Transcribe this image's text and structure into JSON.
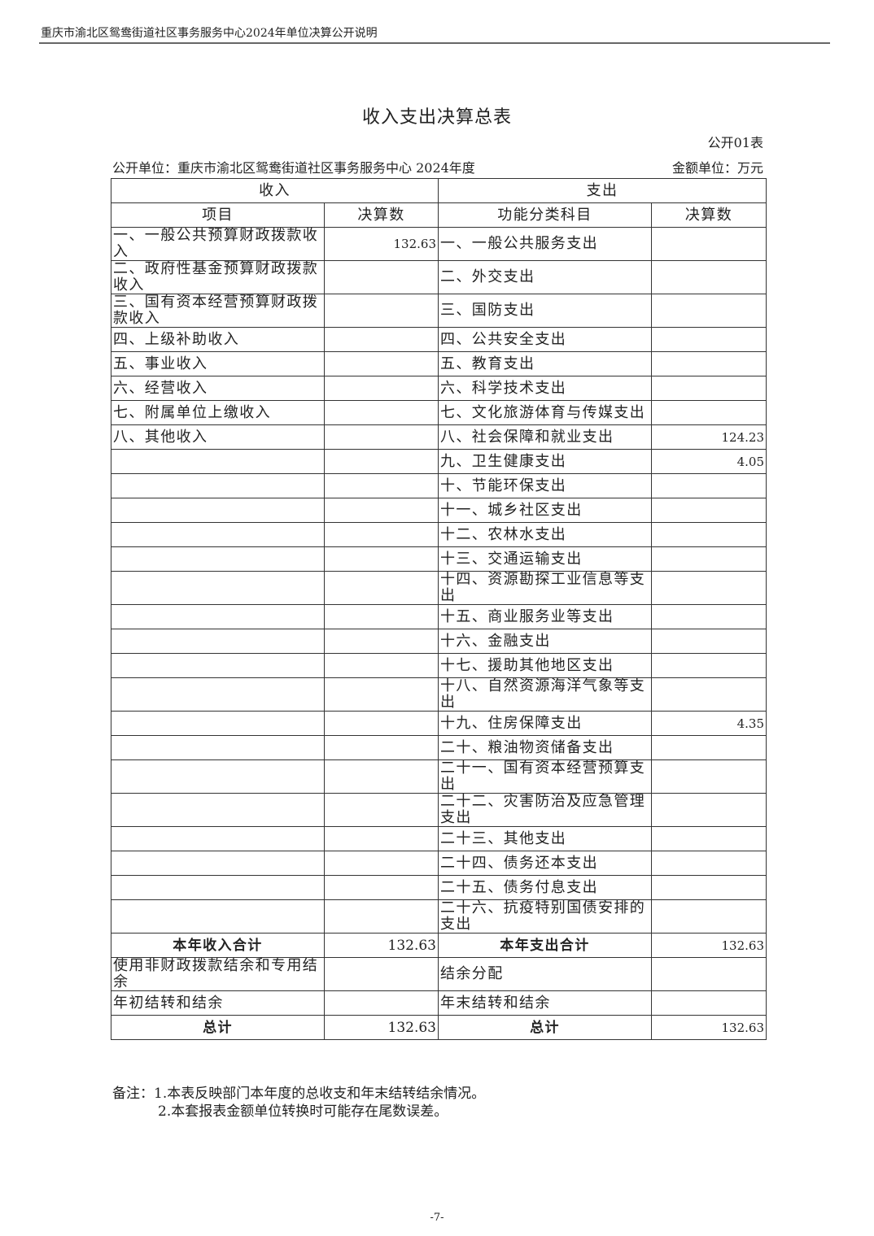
{
  "running_header": "重庆市渝北区鸳鸯街道社区事务服务中心2024年单位决算公开说明",
  "title": "收入支出决算总表",
  "form_no": "公开01表",
  "unit_line": "公开单位：重庆市渝北区鸳鸯街道社区事务服务中心 2024年度",
  "amount_unit": "金额单位：万元",
  "headers": {
    "income": "收入",
    "expense": "支出",
    "item": "项目",
    "amount": "决算数",
    "category": "功能分类科目",
    "amount2": "决算数"
  },
  "rows": [
    {
      "income_item": "一、一般公共预算财政拨款收入",
      "income_amount": "132.63",
      "expense_item": "一、一般公共服务支出",
      "expense_amount": ""
    },
    {
      "income_item": "二、政府性基金预算财政拨款收入",
      "income_amount": "",
      "expense_item": "二、外交支出",
      "expense_amount": ""
    },
    {
      "income_item": "三、国有资本经营预算财政拨款收入",
      "income_amount": "",
      "expense_item": "三、国防支出",
      "expense_amount": ""
    },
    {
      "income_item": "四、上级补助收入",
      "income_amount": "",
      "expense_item": "四、公共安全支出",
      "expense_amount": ""
    },
    {
      "income_item": "五、事业收入",
      "income_amount": "",
      "expense_item": "五、教育支出",
      "expense_amount": ""
    },
    {
      "income_item": "六、经营收入",
      "income_amount": "",
      "expense_item": "六、科学技术支出",
      "expense_amount": ""
    },
    {
      "income_item": "七、附属单位上缴收入",
      "income_amount": "",
      "expense_item": "七、文化旅游体育与传媒支出",
      "expense_amount": ""
    },
    {
      "income_item": "八、其他收入",
      "income_amount": "",
      "expense_item": "八、社会保障和就业支出",
      "expense_amount": "124.23"
    },
    {
      "income_item": "",
      "income_amount": "",
      "expense_item": "九、卫生健康支出",
      "expense_amount": "4.05"
    },
    {
      "income_item": "",
      "income_amount": "",
      "expense_item": "十、节能环保支出",
      "expense_amount": ""
    },
    {
      "income_item": "",
      "income_amount": "",
      "expense_item": "十一、城乡社区支出",
      "expense_amount": ""
    },
    {
      "income_item": "",
      "income_amount": "",
      "expense_item": "十二、农林水支出",
      "expense_amount": ""
    },
    {
      "income_item": "",
      "income_amount": "",
      "expense_item": "十三、交通运输支出",
      "expense_amount": ""
    },
    {
      "income_item": "",
      "income_amount": "",
      "expense_item": "十四、资源勘探工业信息等支出",
      "expense_amount": ""
    },
    {
      "income_item": "",
      "income_amount": "",
      "expense_item": "十五、商业服务业等支出",
      "expense_amount": ""
    },
    {
      "income_item": "",
      "income_amount": "",
      "expense_item": "十六、金融支出",
      "expense_amount": ""
    },
    {
      "income_item": "",
      "income_amount": "",
      "expense_item": "十七、援助其他地区支出",
      "expense_amount": ""
    },
    {
      "income_item": "",
      "income_amount": "",
      "expense_item": "十八、自然资源海洋气象等支出",
      "expense_amount": ""
    },
    {
      "income_item": "",
      "income_amount": "",
      "expense_item": "十九、住房保障支出",
      "expense_amount": "4.35"
    },
    {
      "income_item": "",
      "income_amount": "",
      "expense_item": "二十、粮油物资储备支出",
      "expense_amount": ""
    },
    {
      "income_item": "",
      "income_amount": "",
      "expense_item": "二十一、国有资本经营预算支出",
      "expense_amount": ""
    },
    {
      "income_item": "",
      "income_amount": "",
      "expense_item": "二十二、灾害防治及应急管理支出",
      "expense_amount": ""
    },
    {
      "income_item": "",
      "income_amount": "",
      "expense_item": "二十三、其他支出",
      "expense_amount": ""
    },
    {
      "income_item": "",
      "income_amount": "",
      "expense_item": "二十四、债务还本支出",
      "expense_amount": ""
    },
    {
      "income_item": "",
      "income_amount": "",
      "expense_item": "二十五、债务付息支出",
      "expense_amount": ""
    },
    {
      "income_item": "",
      "income_amount": "",
      "expense_item": "二十六、抗疫特别国债安排的支出",
      "expense_amount": ""
    }
  ],
  "subtotal": {
    "income_label": "本年收入合计",
    "income_amount": "132.63",
    "expense_label": "本年支出合计",
    "expense_amount": "132.63"
  },
  "extra_rows": [
    {
      "income_item": "使用非财政拨款结余和专用结余",
      "income_amount": "",
      "expense_item": "结余分配",
      "expense_amount": ""
    },
    {
      "income_item": "年初结转和结余",
      "income_amount": "",
      "expense_item": "年末结转和结余",
      "expense_amount": ""
    }
  ],
  "total": {
    "income_label": "总计",
    "income_amount": "132.63",
    "expense_label": "总计",
    "expense_amount": "132.63"
  },
  "notes": [
    "备注：1.本表反映部门本年度的总收支和年末结转结余情况。",
    "2.本套报表金额单位转换时可能存在尾数误差。"
  ],
  "page_number": "-7-"
}
